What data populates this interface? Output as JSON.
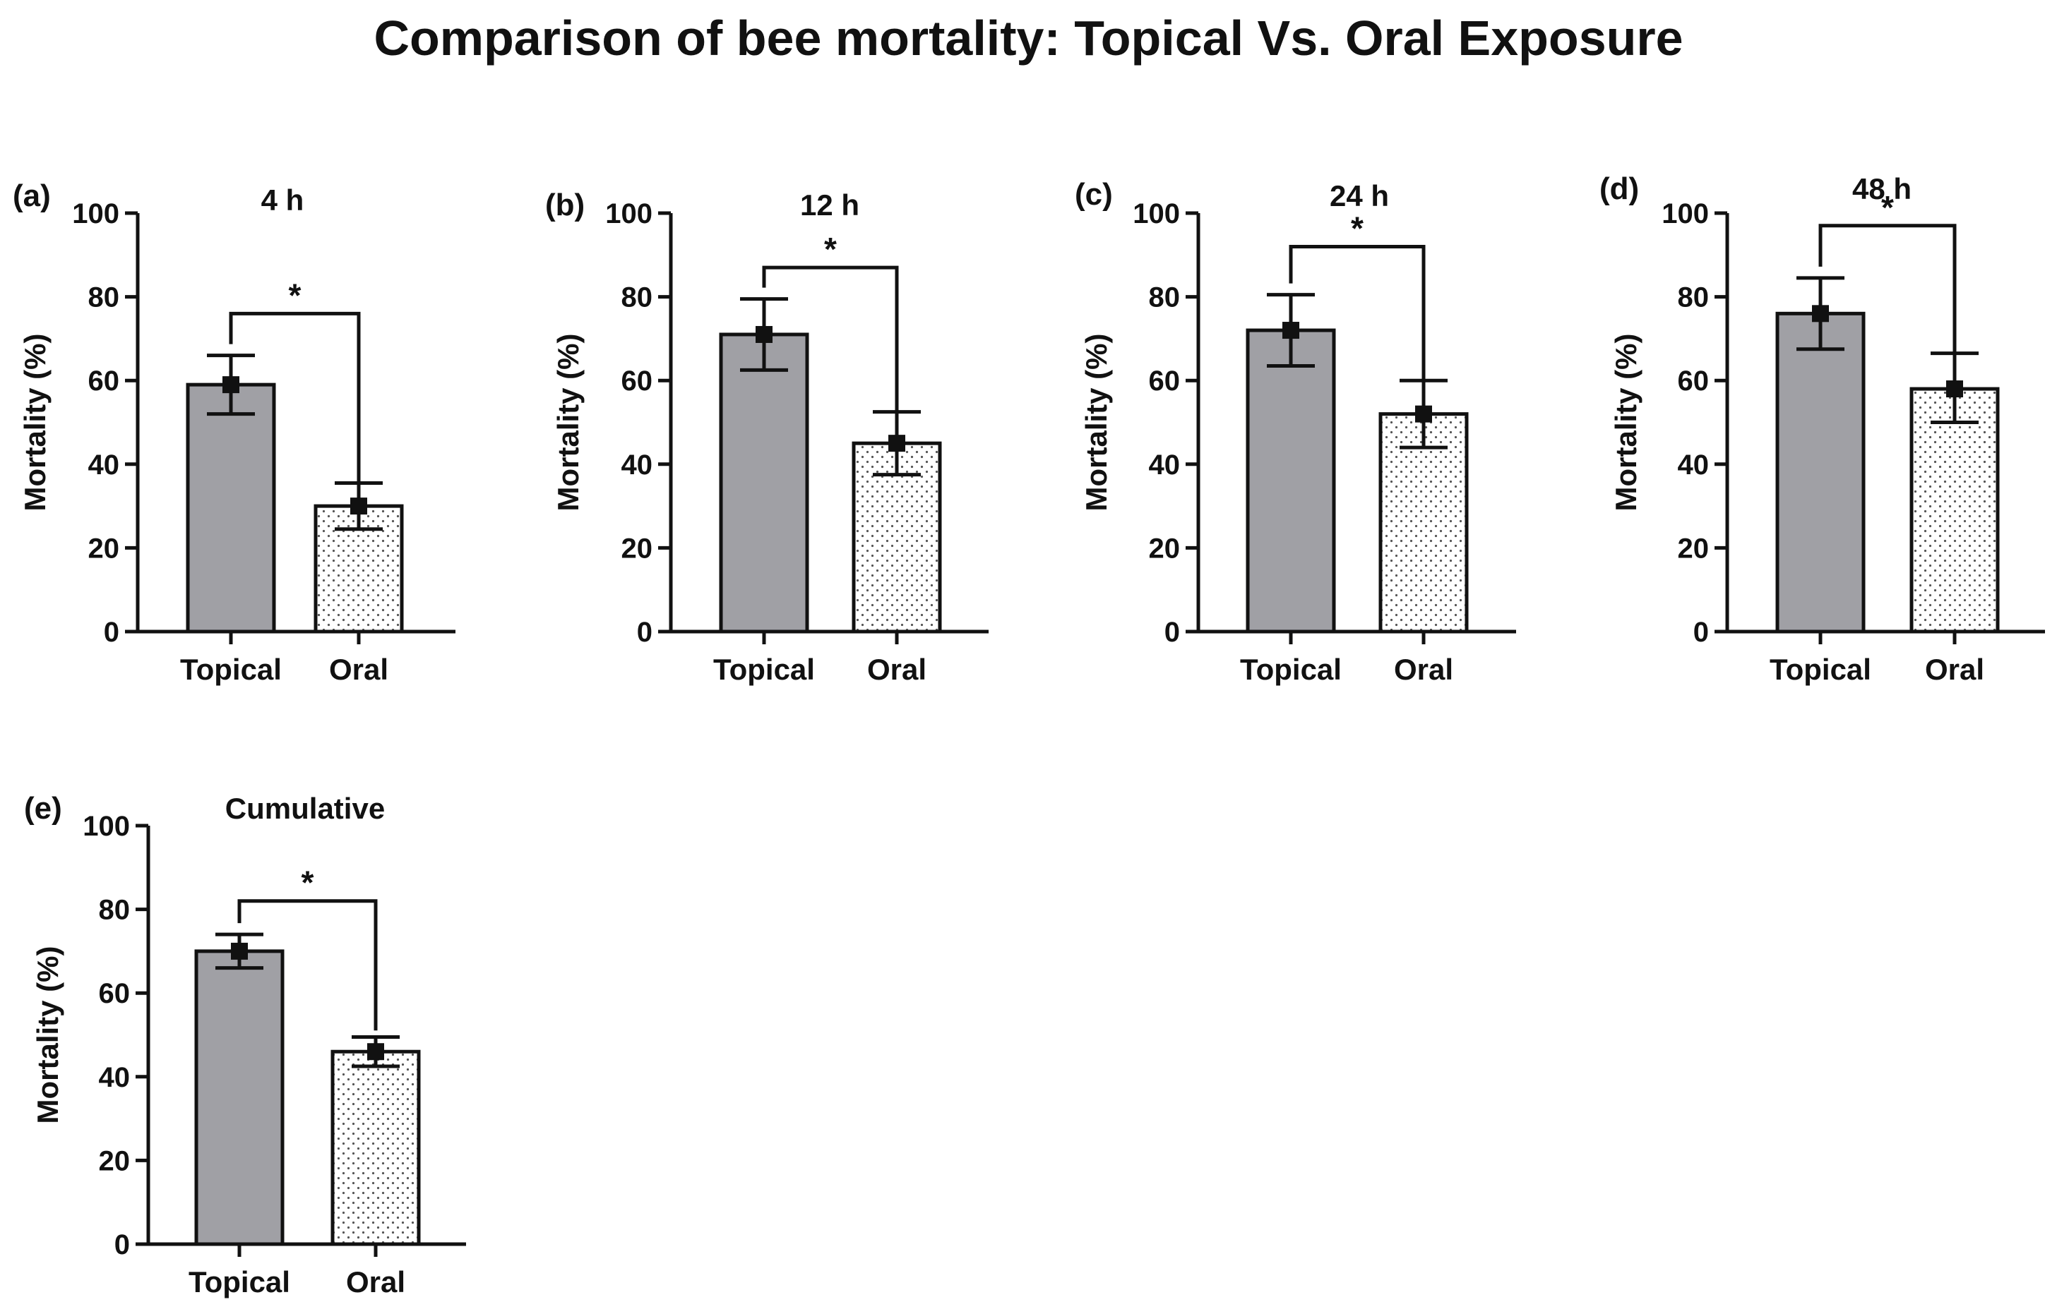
{
  "figure_title": "Comparison of bee mortality: Topical Vs. Oral Exposure",
  "colors": {
    "topical_fill": "#a0a0a5",
    "oral_fill": "#ffffff",
    "axis": "#111111",
    "marker": "#111111"
  },
  "chart_data": [
    {
      "type": "bar",
      "panel": "(a)",
      "title": "4 h",
      "ylabel": "Mortality (%)",
      "xlabel": "",
      "categories": [
        "Topical",
        "Oral"
      ],
      "values": [
        59,
        30
      ],
      "error": [
        [
          52,
          66
        ],
        [
          24.5,
          35.5
        ]
      ],
      "ylim": [
        0,
        100
      ],
      "yticks": [
        0,
        20,
        40,
        60,
        80,
        100
      ],
      "significance": "*",
      "bracket_level": 76
    },
    {
      "type": "bar",
      "panel": "(b)",
      "title": "12 h",
      "ylabel": "Mortality (%)",
      "xlabel": "",
      "categories": [
        "Topical",
        "Oral"
      ],
      "values": [
        71,
        45
      ],
      "error": [
        [
          62.5,
          79.5
        ],
        [
          37.5,
          52.5
        ]
      ],
      "ylim": [
        0,
        100
      ],
      "yticks": [
        0,
        20,
        40,
        60,
        80,
        100
      ],
      "significance": "*",
      "bracket_level": 87
    },
    {
      "type": "bar",
      "panel": "(c)",
      "title": "24 h",
      "ylabel": "Mortality (%)",
      "xlabel": "",
      "categories": [
        "Topical",
        "Oral"
      ],
      "values": [
        72,
        52
      ],
      "error": [
        [
          63.5,
          80.5
        ],
        [
          44,
          60
        ]
      ],
      "ylim": [
        0,
        100
      ],
      "yticks": [
        0,
        20,
        40,
        60,
        80,
        100
      ],
      "significance": "*",
      "bracket_level": 92
    },
    {
      "type": "bar",
      "panel": "(d)",
      "title": "48 h",
      "ylabel": "Mortality (%)",
      "xlabel": "",
      "categories": [
        "Topical",
        "Oral"
      ],
      "values": [
        76,
        58
      ],
      "error": [
        [
          67.5,
          84.5
        ],
        [
          50,
          66.5
        ]
      ],
      "ylim": [
        0,
        100
      ],
      "yticks": [
        0,
        20,
        40,
        60,
        80,
        100
      ],
      "significance": "*",
      "bracket_level": 97
    },
    {
      "type": "bar",
      "panel": "(e)",
      "title": "Cumulative",
      "ylabel": "Mortality (%)",
      "xlabel": "",
      "categories": [
        "Topical",
        "Oral"
      ],
      "values": [
        70,
        46
      ],
      "error": [
        [
          66,
          74
        ],
        [
          42.5,
          49.5
        ]
      ],
      "ylim": [
        0,
        100
      ],
      "yticks": [
        0,
        20,
        40,
        60,
        80,
        100
      ],
      "significance": "*",
      "bracket_level": 82
    }
  ]
}
